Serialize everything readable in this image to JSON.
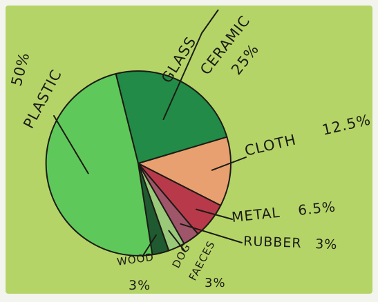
{
  "chart_data": {
    "type": "pie",
    "title": "",
    "slices": [
      {
        "label_lines": [
          "GLASS",
          "CERAMIC"
        ],
        "value_text": "25%",
        "value": 25,
        "color": "#228b47"
      },
      {
        "label_lines": [
          "CLOTH"
        ],
        "value_text": "12.5%",
        "value": 12.5,
        "color": "#e8a070"
      },
      {
        "label_lines": [
          "METAL"
        ],
        "value_text": "6.5%",
        "value": 6.5,
        "color": "#b83a4a"
      },
      {
        "label_lines": [
          "RUBBER"
        ],
        "value_text": "3%",
        "value": 3,
        "color": "#a0566a"
      },
      {
        "label_lines": [
          "DOG",
          "FAECES"
        ],
        "value_text": "3%",
        "value": 3,
        "color": "#9bc97a"
      },
      {
        "label_lines": [
          "WOOD"
        ],
        "value_text": "3%",
        "value": 3,
        "color": "#1f5a30"
      },
      {
        "label_lines": [
          "PLASTIC"
        ],
        "value_text": "50%",
        "value": 50,
        "color": "#5fc85a"
      }
    ],
    "paper_color": "#b5d468"
  }
}
